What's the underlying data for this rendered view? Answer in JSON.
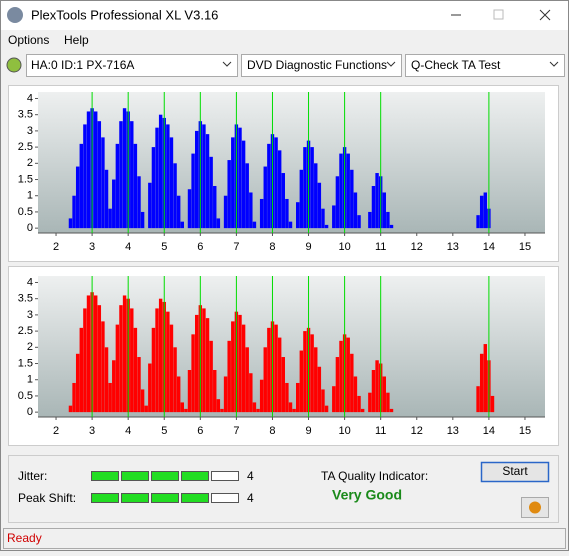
{
  "window": {
    "title": "PlexTools Professional XL V3.16"
  },
  "menu": [
    "Options",
    "Help"
  ],
  "toolbar": {
    "drive": "HA:0 ID:1  PX-716A",
    "function": "DVD Diagnostic Functions",
    "test": "Q-Check TA Test"
  },
  "chart_data": [
    {
      "type": "bar",
      "x": [
        2.4,
        2.5,
        2.6,
        2.7,
        2.8,
        2.9,
        3.0,
        3.1,
        3.2,
        3.3,
        3.4,
        3.5,
        3.6,
        3.7,
        3.8,
        3.9,
        4.0,
        4.1,
        4.2,
        4.3,
        4.4,
        4.5,
        4.6,
        4.7,
        4.8,
        4.9,
        5.0,
        5.1,
        5.2,
        5.3,
        5.4,
        5.5,
        5.6,
        5.7,
        5.8,
        5.9,
        6.0,
        6.1,
        6.2,
        6.3,
        6.4,
        6.5,
        6.6,
        6.7,
        6.8,
        6.9,
        7.0,
        7.1,
        7.2,
        7.3,
        7.4,
        7.5,
        7.6,
        7.7,
        7.8,
        7.9,
        8.0,
        8.1,
        8.2,
        8.3,
        8.4,
        8.5,
        8.6,
        8.7,
        8.8,
        8.9,
        9.0,
        9.1,
        9.2,
        9.3,
        9.4,
        9.5,
        9.6,
        9.7,
        9.8,
        9.9,
        10.0,
        10.1,
        10.2,
        10.3,
        10.4,
        10.5,
        10.6,
        10.7,
        10.8,
        10.9,
        11.0,
        11.1,
        11.2,
        11.3,
        11.4,
        11.5,
        11.6,
        11.7,
        11.8,
        11.9,
        12.0,
        12.1,
        12.2,
        12.3,
        12.4,
        12.5,
        12.6,
        12.7,
        12.8,
        12.9,
        13.0,
        13.1,
        13.2,
        13.3,
        13.4,
        13.5,
        13.6,
        13.7,
        13.8,
        13.9,
        14.0,
        14.1,
        14.2
      ],
      "series": [
        {
          "color": "#0000ff",
          "values": [
            0.3,
            1.0,
            1.9,
            2.6,
            3.2,
            3.6,
            3.7,
            3.6,
            3.3,
            2.8,
            1.8,
            0.6,
            1.5,
            2.6,
            3.3,
            3.7,
            3.6,
            3.3,
            2.6,
            1.6,
            0.5,
            0,
            1.4,
            2.5,
            3.1,
            3.5,
            3.4,
            3.2,
            2.8,
            2.0,
            1.0,
            0.2,
            0,
            1.2,
            2.3,
            3.0,
            3.3,
            3.2,
            2.9,
            2.2,
            1.3,
            0.3,
            0,
            1.0,
            2.1,
            2.8,
            3.2,
            3.1,
            2.7,
            2.0,
            1.1,
            0.2,
            0,
            0.9,
            1.9,
            2.6,
            2.9,
            2.8,
            2.4,
            1.7,
            0.9,
            0.2,
            0,
            0.8,
            1.8,
            2.5,
            2.7,
            2.5,
            2.0,
            1.4,
            0.6,
            0.1,
            0,
            0.7,
            1.6,
            2.3,
            2.5,
            2.3,
            1.8,
            1.1,
            0.4,
            0,
            0,
            0.5,
            1.3,
            1.7,
            1.6,
            1.1,
            0.5,
            0.1,
            0,
            0,
            0,
            0,
            0,
            0,
            0,
            0,
            0,
            0,
            0,
            0,
            0,
            0,
            0,
            0,
            0,
            0,
            0,
            0,
            0,
            0,
            0,
            0.4,
            1.0,
            1.1,
            0.6,
            0,
            0
          ]
        }
      ],
      "markers": [
        3,
        4,
        5,
        6,
        7,
        8,
        9,
        10,
        11,
        14
      ],
      "marker_color": "#00dd00",
      "xlim": [
        1.5,
        15.5
      ],
      "xticks": [
        2,
        3,
        4,
        5,
        6,
        7,
        8,
        9,
        10,
        11,
        12,
        13,
        14,
        15
      ],
      "ylim": [
        -0.15,
        4.2
      ],
      "yticks": [
        0,
        0.5,
        1,
        1.5,
        2,
        2.5,
        3,
        3.5,
        4
      ]
    },
    {
      "type": "bar",
      "x": [
        2.4,
        2.5,
        2.6,
        2.7,
        2.8,
        2.9,
        3.0,
        3.1,
        3.2,
        3.3,
        3.4,
        3.5,
        3.6,
        3.7,
        3.8,
        3.9,
        4.0,
        4.1,
        4.2,
        4.3,
        4.4,
        4.5,
        4.6,
        4.7,
        4.8,
        4.9,
        5.0,
        5.1,
        5.2,
        5.3,
        5.4,
        5.5,
        5.6,
        5.7,
        5.8,
        5.9,
        6.0,
        6.1,
        6.2,
        6.3,
        6.4,
        6.5,
        6.6,
        6.7,
        6.8,
        6.9,
        7.0,
        7.1,
        7.2,
        7.3,
        7.4,
        7.5,
        7.6,
        7.7,
        7.8,
        7.9,
        8.0,
        8.1,
        8.2,
        8.3,
        8.4,
        8.5,
        8.6,
        8.7,
        8.8,
        8.9,
        9.0,
        9.1,
        9.2,
        9.3,
        9.4,
        9.5,
        9.6,
        9.7,
        9.8,
        9.9,
        10.0,
        10.1,
        10.2,
        10.3,
        10.4,
        10.5,
        10.6,
        10.7,
        10.8,
        10.9,
        11.0,
        11.1,
        11.2,
        11.3,
        11.4,
        11.5,
        11.6,
        11.7,
        11.8,
        11.9,
        12.0,
        12.1,
        12.2,
        12.3,
        12.4,
        12.5,
        12.6,
        12.7,
        12.8,
        12.9,
        13.0,
        13.1,
        13.2,
        13.3,
        13.4,
        13.5,
        13.6,
        13.7,
        13.8,
        13.9,
        14.0,
        14.1,
        14.2
      ],
      "series": [
        {
          "color": "#ff0000",
          "values": [
            0.2,
            0.9,
            1.8,
            2.6,
            3.2,
            3.6,
            3.7,
            3.6,
            3.3,
            2.8,
            2.0,
            0.9,
            1.6,
            2.7,
            3.3,
            3.6,
            3.5,
            3.2,
            2.6,
            1.7,
            0.7,
            0.2,
            1.5,
            2.6,
            3.2,
            3.5,
            3.4,
            3.1,
            2.7,
            2.0,
            1.1,
            0.3,
            0.1,
            1.3,
            2.4,
            3.0,
            3.3,
            3.2,
            2.9,
            2.2,
            1.3,
            0.4,
            0.1,
            1.1,
            2.2,
            2.8,
            3.1,
            3.0,
            2.7,
            2.0,
            1.2,
            0.3,
            0.1,
            1.0,
            2.0,
            2.6,
            2.8,
            2.7,
            2.3,
            1.7,
            0.9,
            0.3,
            0.1,
            0.9,
            1.9,
            2.5,
            2.6,
            2.4,
            2.0,
            1.4,
            0.7,
            0.2,
            0,
            0.8,
            1.7,
            2.2,
            2.4,
            2.3,
            1.8,
            1.1,
            0.5,
            0.1,
            0,
            0.6,
            1.3,
            1.6,
            1.5,
            1.1,
            0.6,
            0.1,
            0,
            0,
            0,
            0,
            0,
            0,
            0,
            0,
            0,
            0,
            0,
            0,
            0,
            0,
            0,
            0,
            0,
            0,
            0,
            0,
            0,
            0,
            0,
            0.8,
            1.8,
            2.1,
            1.6,
            0.5,
            0
          ]
        }
      ],
      "markers": [
        3,
        4,
        5,
        6,
        7,
        8,
        9,
        10,
        11,
        14
      ],
      "marker_color": "#00dd00",
      "xlim": [
        1.5,
        15.5
      ],
      "xticks": [
        2,
        3,
        4,
        5,
        6,
        7,
        8,
        9,
        10,
        11,
        12,
        13,
        14,
        15
      ],
      "ylim": [
        -0.15,
        4.2
      ],
      "yticks": [
        0,
        0.5,
        1,
        1.5,
        2,
        2.5,
        3,
        3.5,
        4
      ]
    }
  ],
  "results": {
    "jitter_label": "Jitter:",
    "jitter": 4,
    "peak_shift_label": "Peak Shift:",
    "peak_shift": 4,
    "meter_segments": 5,
    "ta_label": "TA Quality Indicator:",
    "ta_value": "Very Good",
    "start_button": "Start"
  },
  "status": "Ready"
}
